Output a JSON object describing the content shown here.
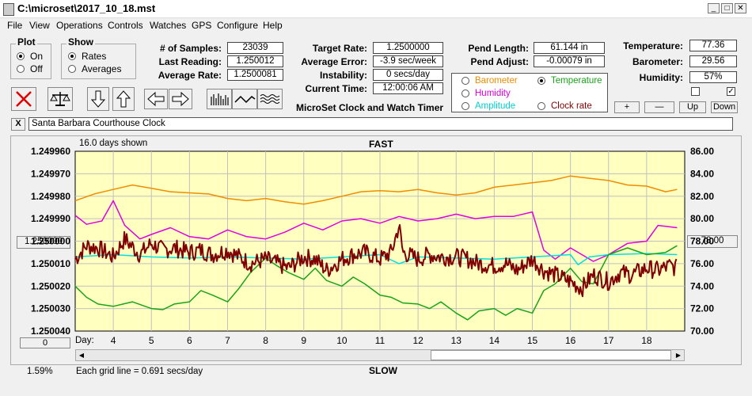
{
  "window": {
    "title": "C:\\microset\\2017_10_18.mst",
    "min": "_",
    "max": "□",
    "close": "✕"
  },
  "menu": [
    "File",
    "View",
    "Operations",
    "Controls",
    "Watches",
    "GPS",
    "Configure",
    "Help"
  ],
  "plot_group": {
    "title": "Plot",
    "on": "On",
    "off": "Off",
    "selected": "On"
  },
  "show_group": {
    "title": "Show",
    "rates": "Rates",
    "averages": "Averages",
    "selected": "Rates"
  },
  "stats": {
    "samples_label": "# of Samples:",
    "samples": "23039",
    "last_label": "Last Reading:",
    "last": "1.250012",
    "avg_rate_label": "Average Rate:",
    "avg_rate": "1.2500081",
    "target_label": "Target Rate:",
    "target": "1.2500000",
    "avg_err_label": "Average Error:",
    "avg_err": "-3.9 sec/week",
    "instab_label": "Instability:",
    "instab": "0 secs/day",
    "time_label": "Current Time:",
    "time": "12:00:06 AM",
    "pend_len_label": "Pend Length:",
    "pend_len": "61.144 in",
    "pend_adj_label": "Pend Adjust:",
    "pend_adj": "-0.00079 in",
    "temp_label": "Temperature:",
    "temp": "77.36",
    "baro_label": "Barometer:",
    "baro": "29.56",
    "hum_label": "Humidity:",
    "hum": "57%"
  },
  "app_caption": "MicroSet Clock and Watch Timer",
  "overlay_options": {
    "barometer": "Barometer",
    "temperature": "Temperature",
    "humidity": "Humidity",
    "amplitude": "Amplitude",
    "clock_rate": "Clock rate",
    "selected": "Temperature"
  },
  "scale_buttons": {
    "plus": "+",
    "minus": "—",
    "up": "Up",
    "down": "Down"
  },
  "checkboxes": {
    "left": false,
    "right": true,
    "check_glyph": "✓"
  },
  "watch_name": "Santa Barbara Courthouse Clock",
  "watch_clear": "X",
  "colors": {
    "barometer": "#f08c00",
    "temperature": "#1aa31a",
    "humidity": "#e000e0",
    "amplitude": "#00e0e0",
    "rate": "#800000",
    "plot_bg": "#ffffc0",
    "grid": "#c0c0c0"
  },
  "chart_data": {
    "type": "line",
    "days_shown": "16.0 days shown",
    "top_label": "FAST",
    "bottom_label": "SLOW",
    "left_button": "1.250000",
    "right_button": "78.00",
    "zero_button": "0",
    "percent": "1.59%",
    "grid_note": "Each grid line = 0.691 secs/day",
    "xlabel": "Day:",
    "x_ticks": [
      "4",
      "5",
      "6",
      "7",
      "8",
      "9",
      "10",
      "11",
      "12",
      "13",
      "14",
      "15",
      "16",
      "17",
      "18"
    ],
    "y_left_ticks": [
      "1.249960",
      "1.249970",
      "1.249980",
      "1.249990",
      "1.250000",
      "1.250010",
      "1.250020",
      "1.250030",
      "1.250040"
    ],
    "y_right_ticks": [
      "86.00",
      "84.00",
      "82.00",
      "80.00",
      "78.00",
      "76.00",
      "74.00",
      "72.00",
      "70.00"
    ],
    "xlim": [
      3.0,
      19.0
    ],
    "ylim_right": [
      70,
      86
    ],
    "series": [
      {
        "name": "Barometer",
        "key": "barometer",
        "x": [
          3.0,
          3.5,
          4.0,
          4.5,
          5.0,
          5.5,
          6.0,
          6.5,
          7.0,
          7.5,
          8.0,
          8.5,
          9.0,
          9.5,
          10.0,
          10.5,
          11.0,
          11.5,
          12.0,
          12.5,
          13.0,
          13.5,
          14.0,
          14.5,
          15.0,
          15.5,
          16.0,
          16.5,
          17.0,
          17.5,
          18.0,
          18.5,
          18.8
        ],
        "y": [
          81.6,
          82.2,
          82.6,
          83.0,
          82.7,
          82.4,
          82.3,
          82.2,
          81.8,
          81.6,
          81.8,
          81.5,
          81.3,
          81.6,
          82.0,
          82.4,
          82.5,
          82.4,
          82.6,
          82.3,
          82.1,
          82.3,
          82.8,
          83.0,
          83.2,
          83.4,
          83.8,
          83.6,
          83.4,
          83.0,
          82.9,
          82.4,
          82.6
        ]
      },
      {
        "name": "Humidity",
        "key": "humidity",
        "x": [
          3.0,
          3.3,
          3.7,
          4.0,
          4.3,
          4.7,
          5.0,
          5.5,
          6.0,
          6.5,
          7.0,
          7.5,
          8.0,
          8.5,
          9.0,
          9.5,
          10.0,
          10.5,
          11.0,
          11.5,
          12.0,
          12.5,
          13.0,
          13.5,
          14.0,
          14.5,
          15.0,
          15.3,
          15.6,
          16.0,
          16.3,
          16.6,
          17.0,
          17.5,
          18.0,
          18.3,
          18.8
        ],
        "y": [
          80.3,
          79.5,
          79.8,
          81.6,
          79.4,
          78.2,
          78.6,
          79.2,
          78.4,
          78.2,
          79.0,
          78.4,
          78.2,
          78.8,
          79.6,
          79.0,
          79.8,
          80.0,
          79.6,
          80.2,
          79.8,
          80.0,
          80.4,
          80.0,
          80.2,
          80.2,
          80.6,
          77.2,
          76.4,
          77.4,
          76.8,
          76.2,
          76.8,
          77.8,
          78.0,
          79.4,
          79.2
        ]
      },
      {
        "name": "Amplitude",
        "key": "amplitude",
        "x": [
          3.0,
          4.0,
          5.0,
          6.0,
          7.0,
          8.0,
          9.0,
          10.0,
          11.0,
          11.5,
          12.0,
          13.0,
          14.0,
          15.0,
          16.0,
          16.2,
          16.5,
          17.0,
          18.0,
          18.8
        ],
        "y": [
          76.6,
          76.8,
          76.6,
          76.5,
          76.6,
          76.5,
          76.4,
          76.6,
          76.8,
          76.0,
          76.6,
          76.5,
          76.4,
          76.6,
          76.8,
          75.9,
          76.6,
          76.8,
          76.9,
          76.8
        ]
      },
      {
        "name": "Temperature",
        "key": "temperature",
        "x": [
          3.0,
          3.3,
          3.6,
          4.0,
          4.5,
          5.0,
          5.3,
          5.6,
          6.0,
          6.3,
          6.6,
          7.0,
          7.3,
          7.6,
          8.0,
          8.3,
          8.6,
          9.0,
          9.3,
          9.6,
          10.0,
          10.3,
          10.6,
          11.0,
          11.3,
          11.6,
          12.0,
          12.3,
          12.6,
          13.0,
          13.3,
          13.6,
          14.0,
          14.3,
          14.6,
          15.0,
          15.3,
          15.6,
          16.0,
          16.3,
          16.6,
          17.0,
          17.5,
          18.0,
          18.5,
          18.8
        ],
        "y": [
          74.0,
          73.0,
          72.4,
          72.2,
          72.6,
          72.0,
          71.9,
          72.4,
          72.6,
          73.6,
          73.2,
          72.6,
          73.8,
          75.2,
          76.5,
          75.8,
          75.2,
          74.6,
          75.6,
          74.5,
          74.0,
          74.8,
          74.2,
          73.2,
          73.0,
          72.5,
          72.4,
          72.0,
          72.6,
          71.6,
          71.0,
          71.8,
          72.0,
          71.4,
          72.0,
          71.6,
          73.6,
          74.2,
          75.6,
          74.4,
          74.2,
          76.8,
          77.4,
          76.8,
          77.0,
          77.6
        ]
      },
      {
        "name": "Rate",
        "key": "rate",
        "noisy": true,
        "x": [
          3.0,
          3.3,
          3.6,
          4.0,
          4.3,
          4.7,
          5.0,
          5.3,
          5.6,
          6.0,
          6.3,
          6.6,
          7.0,
          7.3,
          7.6,
          8.0,
          8.3,
          8.6,
          9.0,
          9.3,
          9.6,
          10.0,
          10.3,
          10.6,
          11.0,
          11.3,
          11.5,
          11.6,
          12.0,
          12.3,
          12.6,
          13.0,
          13.3,
          13.6,
          14.0,
          14.3,
          14.6,
          15.0,
          15.3,
          15.6,
          16.0,
          16.3,
          16.6,
          17.0,
          17.3,
          17.6,
          18.0,
          18.3,
          18.6,
          18.8
        ],
        "y": [
          76.4,
          77.6,
          77.4,
          76.6,
          78.2,
          76.8,
          77.8,
          77.2,
          77.4,
          77.0,
          77.2,
          76.8,
          77.2,
          76.6,
          76.0,
          76.4,
          76.0,
          75.6,
          76.6,
          76.4,
          75.4,
          76.4,
          76.8,
          77.0,
          76.4,
          77.0,
          79.4,
          77.0,
          76.4,
          76.8,
          76.6,
          76.6,
          76.4,
          76.0,
          75.8,
          76.0,
          75.4,
          76.4,
          75.4,
          75.0,
          74.4,
          73.8,
          75.0,
          74.4,
          75.2,
          75.0,
          75.6,
          75.4,
          75.8,
          75.6
        ]
      }
    ]
  }
}
